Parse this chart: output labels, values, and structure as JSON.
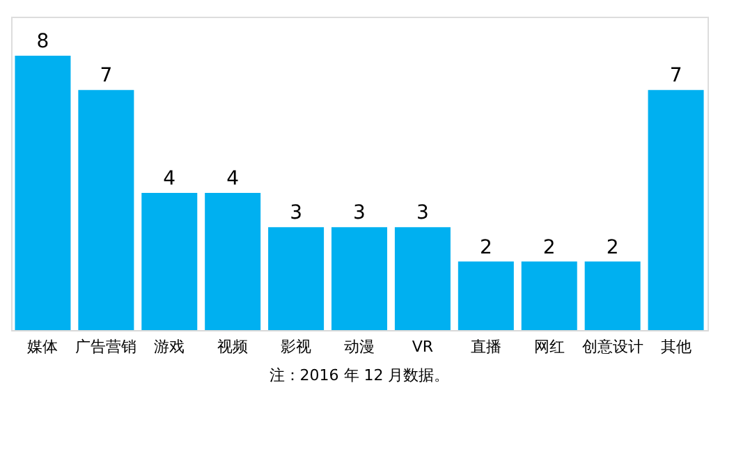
{
  "chart_data": {
    "type": "bar",
    "categories": [
      "媒体",
      "广告营销",
      "游戏",
      "视频",
      "影视",
      "动漫",
      "VR",
      "直播",
      "网红",
      "创意设计",
      "其他"
    ],
    "values": [
      8,
      7,
      4,
      4,
      3,
      3,
      3,
      2,
      2,
      2,
      7
    ],
    "color": "#00b0f0",
    "data_labels": true,
    "annotations": [
      "注：2016 年 12 月数据。"
    ]
  }
}
